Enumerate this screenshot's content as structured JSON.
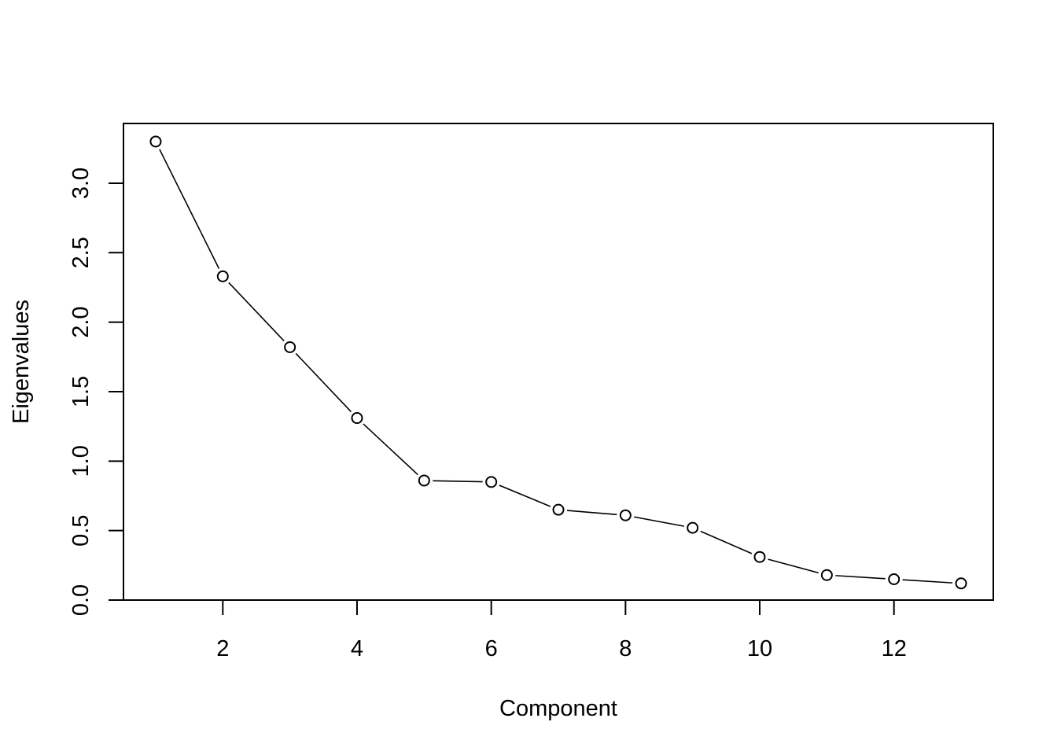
{
  "chart_data": {
    "type": "line",
    "title": "",
    "xlabel": "Component",
    "ylabel": "Eigenvalues",
    "x": [
      1,
      2,
      3,
      4,
      5,
      6,
      7,
      8,
      9,
      10,
      11,
      12,
      13
    ],
    "values": [
      3.3,
      2.33,
      1.82,
      1.31,
      0.86,
      0.85,
      0.65,
      0.61,
      0.52,
      0.31,
      0.18,
      0.15,
      0.12
    ],
    "xlim": [
      0.52,
      13.48
    ],
    "ylim": [
      0.0,
      3.43
    ],
    "x_ticks": [
      2,
      4,
      6,
      8,
      10,
      12
    ],
    "y_ticks": [
      0.0,
      0.5,
      1.0,
      1.5,
      2.0,
      2.5,
      3.0
    ],
    "x_tick_labels": [
      "2",
      "4",
      "6",
      "8",
      "10",
      "12"
    ],
    "y_tick_labels": [
      "0.0",
      "0.5",
      "1.0",
      "1.5",
      "2.0",
      "2.5",
      "3.0"
    ],
    "marker": "open-circle",
    "grid": false,
    "legend": "none",
    "line_color": "#000000"
  }
}
